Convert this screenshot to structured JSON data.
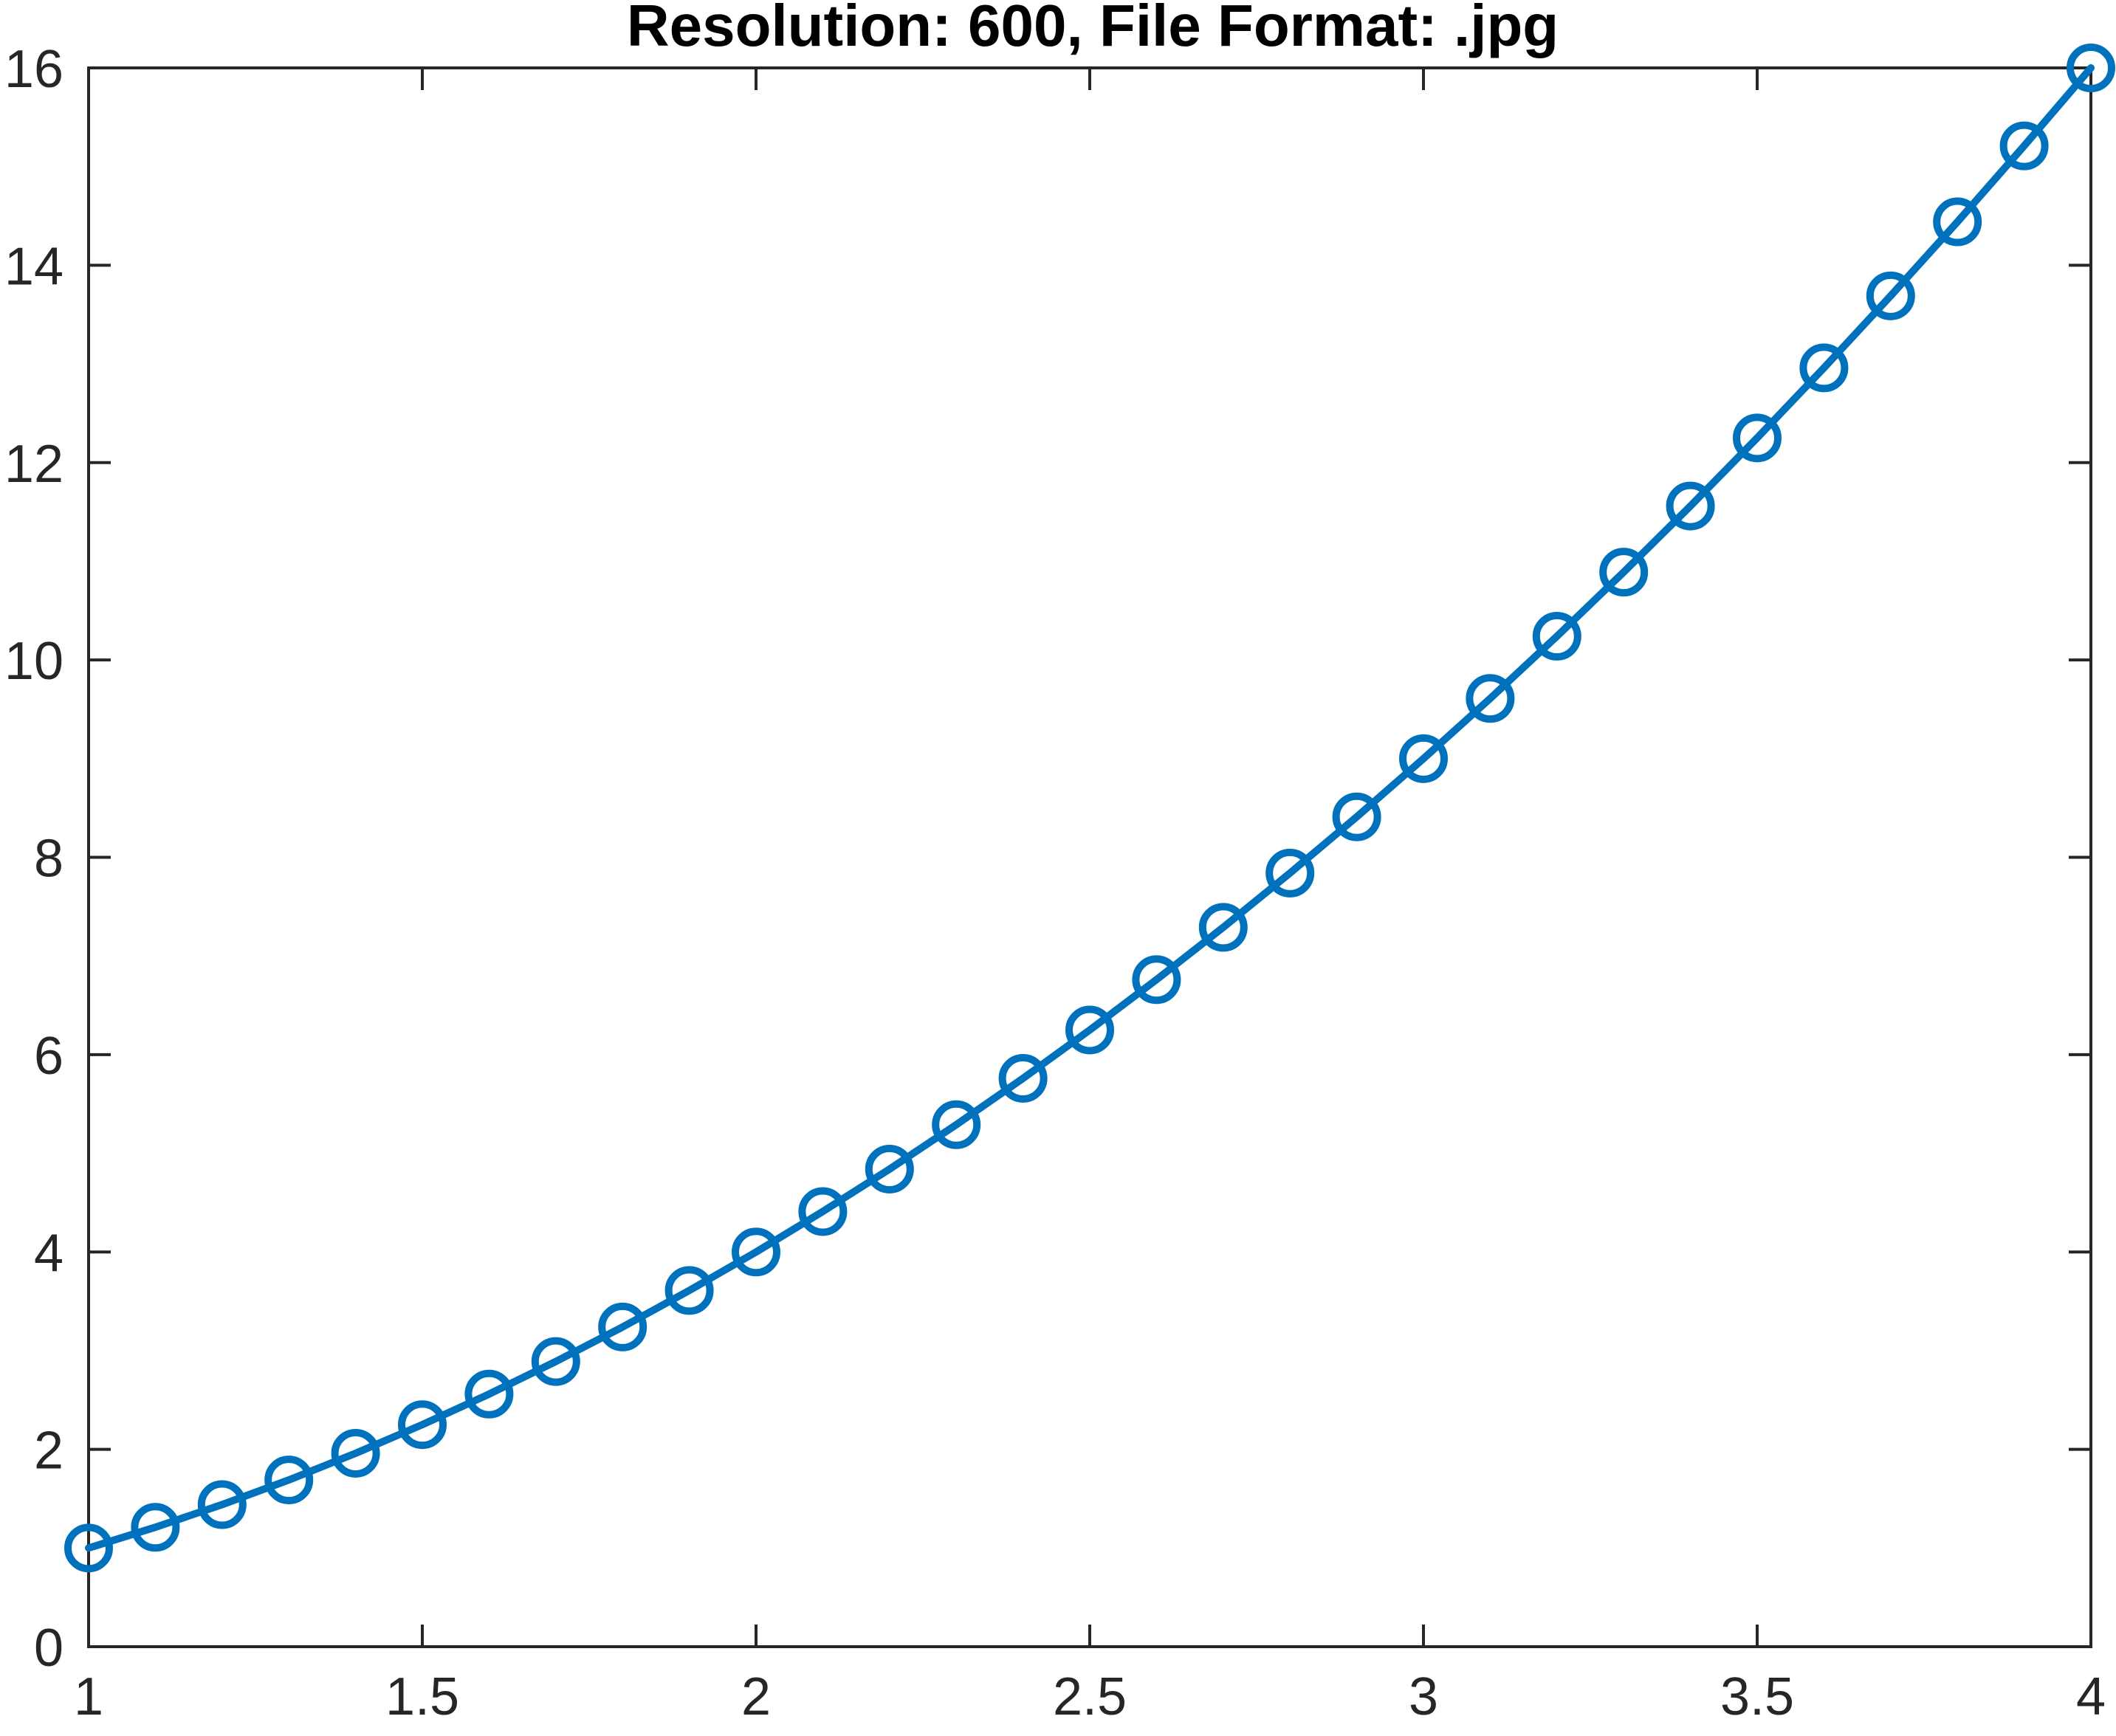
{
  "chart_data": {
    "type": "line",
    "title": "Resolution: 600, File Format: .jpg",
    "xlabel": "",
    "ylabel": "",
    "xlim": [
      1,
      4
    ],
    "ylim": [
      0,
      16
    ],
    "grid": false,
    "xticks": [
      1,
      1.5,
      2,
      2.5,
      3,
      3.5,
      4
    ],
    "xtick_labels": [
      "1",
      "1.5",
      "2",
      "2.5",
      "3",
      "3.5",
      "4"
    ],
    "yticks": [
      0,
      2,
      4,
      6,
      8,
      10,
      12,
      14,
      16
    ],
    "ytick_labels": [
      "0",
      "2",
      "4",
      "6",
      "8",
      "10",
      "12",
      "14",
      "16"
    ],
    "series": [
      {
        "color": "#0072BD",
        "marker": "circle",
        "x": [
          1.0,
          1.1,
          1.2,
          1.3,
          1.4,
          1.5,
          1.6,
          1.7,
          1.8,
          1.9,
          2.0,
          2.1,
          2.2,
          2.3,
          2.4,
          2.5,
          2.6,
          2.7,
          2.8,
          2.9,
          3.0,
          3.1,
          3.2,
          3.3,
          3.4,
          3.5,
          3.6,
          3.7,
          3.8,
          3.9,
          4.0
        ],
        "y": [
          1.0,
          1.21,
          1.44,
          1.69,
          1.96,
          2.25,
          2.56,
          2.89,
          3.24,
          3.61,
          4.0,
          4.41,
          4.84,
          5.29,
          5.76,
          6.25,
          6.76,
          7.29,
          7.84,
          8.41,
          9.0,
          9.61,
          10.24,
          10.89,
          11.56,
          12.25,
          12.96,
          13.69,
          14.44,
          15.21,
          16.0
        ]
      }
    ]
  }
}
